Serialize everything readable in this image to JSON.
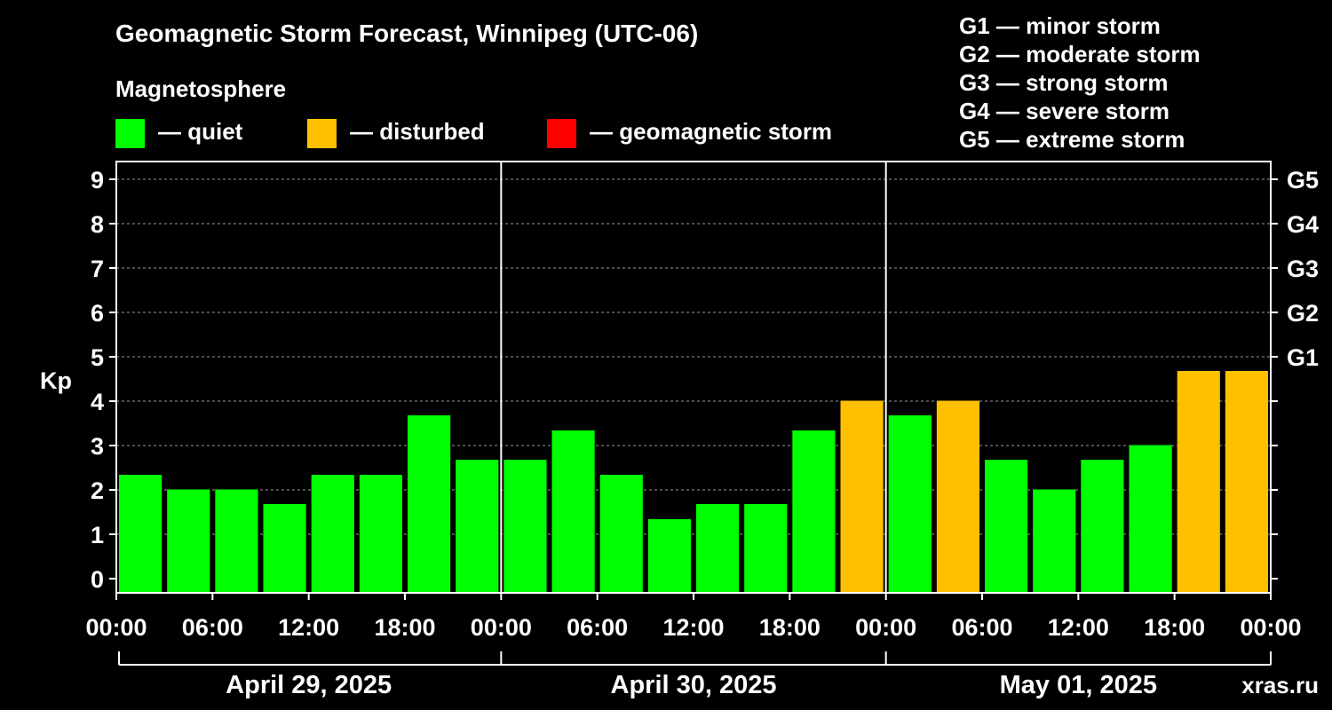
{
  "header": {
    "title": "Geomagnetic Storm Forecast, Winnipeg (UTC-06)",
    "magnetosphere_label": "Magnetosphere"
  },
  "legend": [
    {
      "label": "— quiet",
      "color": "#00ff00"
    },
    {
      "label": "— disturbed",
      "color": "#ffc000"
    },
    {
      "label": "— geomagnetic storm",
      "color": "#ff0000"
    }
  ],
  "storm_scale": [
    "G1 — minor storm",
    "G2 — moderate storm",
    "G3 — strong storm",
    "G4 — severe storm",
    "G5 — extreme storm"
  ],
  "watermark": "xras.ru",
  "chart_data": {
    "type": "bar",
    "ylabel": "Kp",
    "ylim": [
      0,
      9
    ],
    "yticks": [
      "0",
      "1",
      "2",
      "3",
      "4",
      "5",
      "6",
      "7",
      "8",
      "9"
    ],
    "right_ticks": [
      {
        "value": 5,
        "label": "G1"
      },
      {
        "value": 6,
        "label": "G2"
      },
      {
        "value": 7,
        "label": "G3"
      },
      {
        "value": 8,
        "label": "G4"
      },
      {
        "value": 9,
        "label": "G5"
      }
    ],
    "xticks": [
      "00:00",
      "06:00",
      "12:00",
      "18:00",
      "00:00",
      "06:00",
      "12:00",
      "18:00",
      "00:00",
      "06:00",
      "12:00",
      "18:00",
      "00:00"
    ],
    "days": [
      "April 29, 2025",
      "April 30, 2025",
      "May 01, 2025"
    ],
    "grid": "dashed horizontal lines at each integer Kp",
    "colors": {
      "quiet": "#00ff00",
      "disturbed": "#ffc000",
      "storm": "#ff0000"
    },
    "values": [
      2.33,
      2.0,
      2.0,
      1.67,
      2.33,
      2.33,
      3.67,
      2.67,
      2.67,
      3.33,
      2.33,
      1.33,
      1.67,
      1.67,
      3.33,
      4.0,
      3.67,
      4.0,
      2.67,
      2.0,
      2.67,
      3.0,
      4.67,
      4.67
    ],
    "levels": [
      "quiet",
      "quiet",
      "quiet",
      "quiet",
      "quiet",
      "quiet",
      "quiet",
      "quiet",
      "quiet",
      "quiet",
      "quiet",
      "quiet",
      "quiet",
      "quiet",
      "quiet",
      "disturbed",
      "quiet",
      "disturbed",
      "quiet",
      "quiet",
      "quiet",
      "quiet",
      "disturbed",
      "disturbed"
    ]
  }
}
